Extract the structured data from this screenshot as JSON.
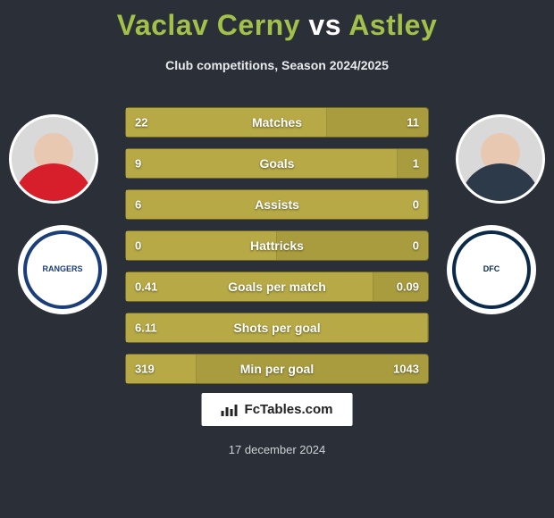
{
  "title": {
    "player1_name": "Vaclav Cerny",
    "vs_text": "vs",
    "player2_name": "Astley",
    "player1_color": "#a3c04a",
    "player2_color": "#a3c04a",
    "fontsize": 32
  },
  "subtitle": "Club competitions, Season 2024/2025",
  "background_color": "#2b2f37",
  "bar_style": {
    "base_color": "#a89c3f",
    "fill_color": "#b6a946",
    "border_color": "#6f6828",
    "text_color": "#ffffff",
    "height": 34,
    "gap": 12,
    "label_fontsize": 14,
    "value_fontsize": 13
  },
  "stats": [
    {
      "label": "Matches",
      "left_value": "22",
      "right_value": "11",
      "left_pct": 66.7
    },
    {
      "label": "Goals",
      "left_value": "9",
      "right_value": "1",
      "left_pct": 90.0
    },
    {
      "label": "Assists",
      "left_value": "6",
      "right_value": "0",
      "left_pct": 100.0
    },
    {
      "label": "Hattricks",
      "left_value": "0",
      "right_value": "0",
      "left_pct": 50.0
    },
    {
      "label": "Goals per match",
      "left_value": "0.41",
      "right_value": "0.09",
      "left_pct": 82.0
    },
    {
      "label": "Shots per goal",
      "left_value": "6.11",
      "right_value": "",
      "left_pct": 100.0
    },
    {
      "label": "Min per goal",
      "left_value": "319",
      "right_value": "1043",
      "left_pct": 23.4
    }
  ],
  "player1": {
    "avatar": {
      "skin": "#e8c8b0",
      "jersey": "#d61f2a",
      "border": "#ffffff"
    },
    "club": {
      "name": "RANGERS",
      "ring_color": "#1a3e7a",
      "text_color": "#1a3e7a"
    }
  },
  "player2": {
    "avatar": {
      "skin": "#e8c8b0",
      "jersey": "#2d3a4a",
      "border": "#ffffff"
    },
    "club": {
      "name": "DFC",
      "ring_color": "#0b2a4a",
      "text_color": "#0b2a4a"
    }
  },
  "brand": {
    "text": "FcTables.com",
    "bg": "#ffffff",
    "fg": "#222222"
  },
  "date_text": "17 december 2024"
}
